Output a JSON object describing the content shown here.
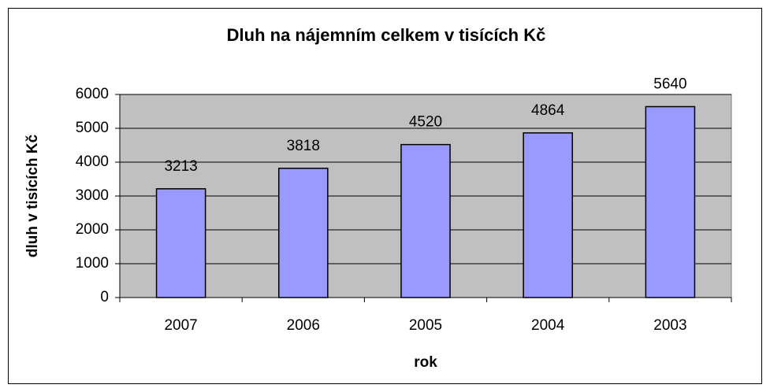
{
  "chart_data": {
    "type": "bar",
    "title": "Dluh na nájemním celkem v tisících Kč",
    "xlabel": "rok",
    "ylabel": "dluh v tisících Kč",
    "categories": [
      "2007",
      "2006",
      "2005",
      "2004",
      "2003"
    ],
    "values": [
      3213,
      3818,
      4520,
      4864,
      5640
    ],
    "color": "#9999ff",
    "ylim": [
      0,
      6000
    ],
    "yticks": [
      0,
      1000,
      2000,
      3000,
      4000,
      5000,
      6000
    ],
    "grid": true
  }
}
